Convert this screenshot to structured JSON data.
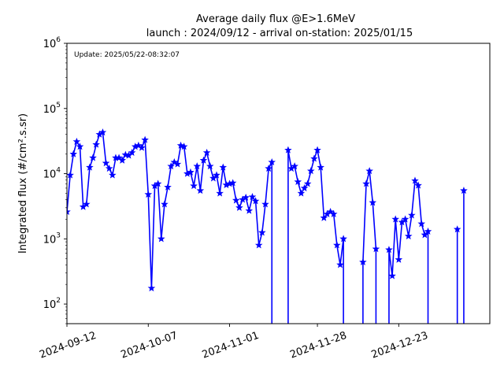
{
  "chart_data": {
    "type": "line",
    "title": "Average daily flux @E>1.6MeV",
    "subtitle": "launch : 2024/09/12 - arrival on-station: 2025/01/15",
    "annotation": "Update: 2025/05/22-08:32:07",
    "xlabel": "",
    "ylabel": "Integrated flux (#/cm².s.sr)",
    "yscale": "log",
    "ylim": [
      50,
      1000000
    ],
    "xlim": [
      "2024-09-12",
      "2025-01-20"
    ],
    "grid": false,
    "x_ticks": [
      "2024-09-12",
      "2024-10-07",
      "2024-11-01",
      "2024-11-28",
      "2024-12-23"
    ],
    "y_ticks": [
      {
        "value": 100,
        "mantissa": "10",
        "exponent": "2"
      },
      {
        "value": 1000,
        "mantissa": "10",
        "exponent": "3"
      },
      {
        "value": 10000,
        "mantissa": "10",
        "exponent": "4"
      },
      {
        "value": 100000,
        "mantissa": "10",
        "exponent": "5"
      },
      {
        "value": 1000000,
        "mantissa": "10",
        "exponent": "6"
      }
    ],
    "colors": {
      "series": "#0000ff",
      "axes": "#000000"
    },
    "series": [
      {
        "name": "",
        "marker": "star",
        "points": [
          [
            "2024-09-12",
            2600
          ],
          [
            "2024-09-13",
            9500
          ],
          [
            "2024-09-14",
            20000
          ],
          [
            "2024-09-15",
            31000
          ],
          [
            "2024-09-16",
            26000
          ],
          [
            "2024-09-17",
            3100
          ],
          [
            "2024-09-18",
            3400
          ],
          [
            "2024-09-19",
            12500
          ],
          [
            "2024-09-20",
            17500
          ],
          [
            "2024-09-21",
            28000
          ],
          [
            "2024-09-22",
            40000
          ],
          [
            "2024-09-23",
            43000
          ],
          [
            "2024-09-24",
            14500
          ],
          [
            "2024-09-25",
            12000
          ],
          [
            "2024-09-26",
            9500
          ],
          [
            "2024-09-27",
            17500
          ],
          [
            "2024-09-28",
            17500
          ],
          [
            "2024-09-29",
            16000
          ],
          [
            "2024-09-30",
            19500
          ],
          [
            "2024-10-01",
            19000
          ],
          [
            "2024-10-02",
            21000
          ],
          [
            "2024-10-03",
            26000
          ],
          [
            "2024-10-04",
            27000
          ],
          [
            "2024-10-05",
            25000
          ],
          [
            "2024-10-06",
            33000
          ],
          [
            "2024-10-07",
            4800
          ],
          [
            "2024-10-08",
            175
          ],
          [
            "2024-10-09",
            6500
          ],
          [
            "2024-10-10",
            7000
          ],
          [
            "2024-10-11",
            1000
          ],
          [
            "2024-10-12",
            3400
          ],
          [
            "2024-10-13",
            6200
          ],
          [
            "2024-10-14",
            13000
          ],
          [
            "2024-10-15",
            15000
          ],
          [
            "2024-10-16",
            14000
          ],
          [
            "2024-10-17",
            27000
          ],
          [
            "2024-10-18",
            26000
          ],
          [
            "2024-10-19",
            10000
          ],
          [
            "2024-10-20",
            10500
          ],
          [
            "2024-10-21",
            6500
          ],
          [
            "2024-10-22",
            13000
          ],
          [
            "2024-10-23",
            5500
          ],
          [
            "2024-10-24",
            16000
          ],
          [
            "2024-10-25",
            21000
          ],
          [
            "2024-10-26",
            13000
          ],
          [
            "2024-10-27",
            8500
          ],
          [
            "2024-10-28",
            9500
          ],
          [
            "2024-10-29",
            5000
          ],
          [
            "2024-10-30",
            12500
          ],
          [
            "2024-10-31",
            6700
          ],
          [
            "2024-11-01",
            7000
          ],
          [
            "2024-11-02",
            7200
          ],
          [
            "2024-11-03",
            3900
          ],
          [
            "2024-11-04",
            3000
          ],
          [
            "2024-11-05",
            4000
          ],
          [
            "2024-11-06",
            4300
          ],
          [
            "2024-11-07",
            2700
          ],
          [
            "2024-11-08",
            4400
          ],
          [
            "2024-11-09",
            3800
          ],
          [
            "2024-11-10",
            800
          ],
          [
            "2024-11-11",
            1250
          ],
          [
            "2024-11-12",
            3400
          ],
          [
            "2024-11-13",
            12000
          ],
          [
            "2024-11-14",
            15000
          ],
          [
            "2024-11-15",
            null
          ],
          [
            "2024-11-16",
            null
          ],
          [
            "2024-11-17",
            null
          ],
          [
            "2024-11-18",
            null
          ],
          [
            "2024-11-19",
            23000
          ],
          [
            "2024-11-20",
            12000
          ],
          [
            "2024-11-21",
            13000
          ],
          [
            "2024-11-22",
            7500
          ],
          [
            "2024-11-23",
            5000
          ],
          [
            "2024-11-24",
            6000
          ],
          [
            "2024-11-25",
            7000
          ],
          [
            "2024-11-26",
            11000
          ],
          [
            "2024-11-27",
            17000
          ],
          [
            "2024-11-28",
            23000
          ],
          [
            "2024-11-29",
            12500
          ],
          [
            "2024-11-30",
            2100
          ],
          [
            "2024-12-01",
            2400
          ],
          [
            "2024-12-02",
            2600
          ],
          [
            "2024-12-03",
            2400
          ],
          [
            "2024-12-04",
            800
          ],
          [
            "2024-12-05",
            400
          ],
          [
            "2024-12-06",
            1000
          ],
          [
            "2024-12-07",
            null
          ],
          [
            "2024-12-08",
            null
          ],
          [
            "2024-12-09",
            null
          ],
          [
            "2024-12-10",
            null
          ],
          [
            "2024-12-11",
            null
          ],
          [
            "2024-12-12",
            440
          ],
          [
            "2024-12-13",
            7000
          ],
          [
            "2024-12-14",
            11000
          ],
          [
            "2024-12-15",
            3600
          ],
          [
            "2024-12-16",
            700
          ],
          [
            "2024-12-17",
            null
          ],
          [
            "2024-12-18",
            null
          ],
          [
            "2024-12-19",
            null
          ],
          [
            "2024-12-20",
            680
          ],
          [
            "2024-12-21",
            270
          ],
          [
            "2024-12-22",
            2000
          ],
          [
            "2024-12-23",
            480
          ],
          [
            "2024-12-24",
            1800
          ],
          [
            "2024-12-25",
            2000
          ],
          [
            "2024-12-26",
            1100
          ],
          [
            "2024-12-27",
            2300
          ],
          [
            "2024-12-28",
            7800
          ],
          [
            "2024-12-29",
            6600
          ],
          [
            "2024-12-30",
            1700
          ],
          [
            "2024-12-31",
            1150
          ],
          [
            "2025-01-01",
            1300
          ],
          [
            "2025-01-02",
            null
          ],
          [
            "2025-01-03",
            null
          ],
          [
            "2025-01-04",
            null
          ],
          [
            "2025-01-05",
            null
          ],
          [
            "2025-01-06",
            null
          ],
          [
            "2025-01-07",
            null
          ],
          [
            "2025-01-08",
            null
          ],
          [
            "2025-01-09",
            null
          ],
          [
            "2025-01-10",
            1400
          ],
          [
            "2025-01-11",
            null
          ],
          [
            "2025-01-12",
            5500
          ]
        ]
      }
    ]
  }
}
